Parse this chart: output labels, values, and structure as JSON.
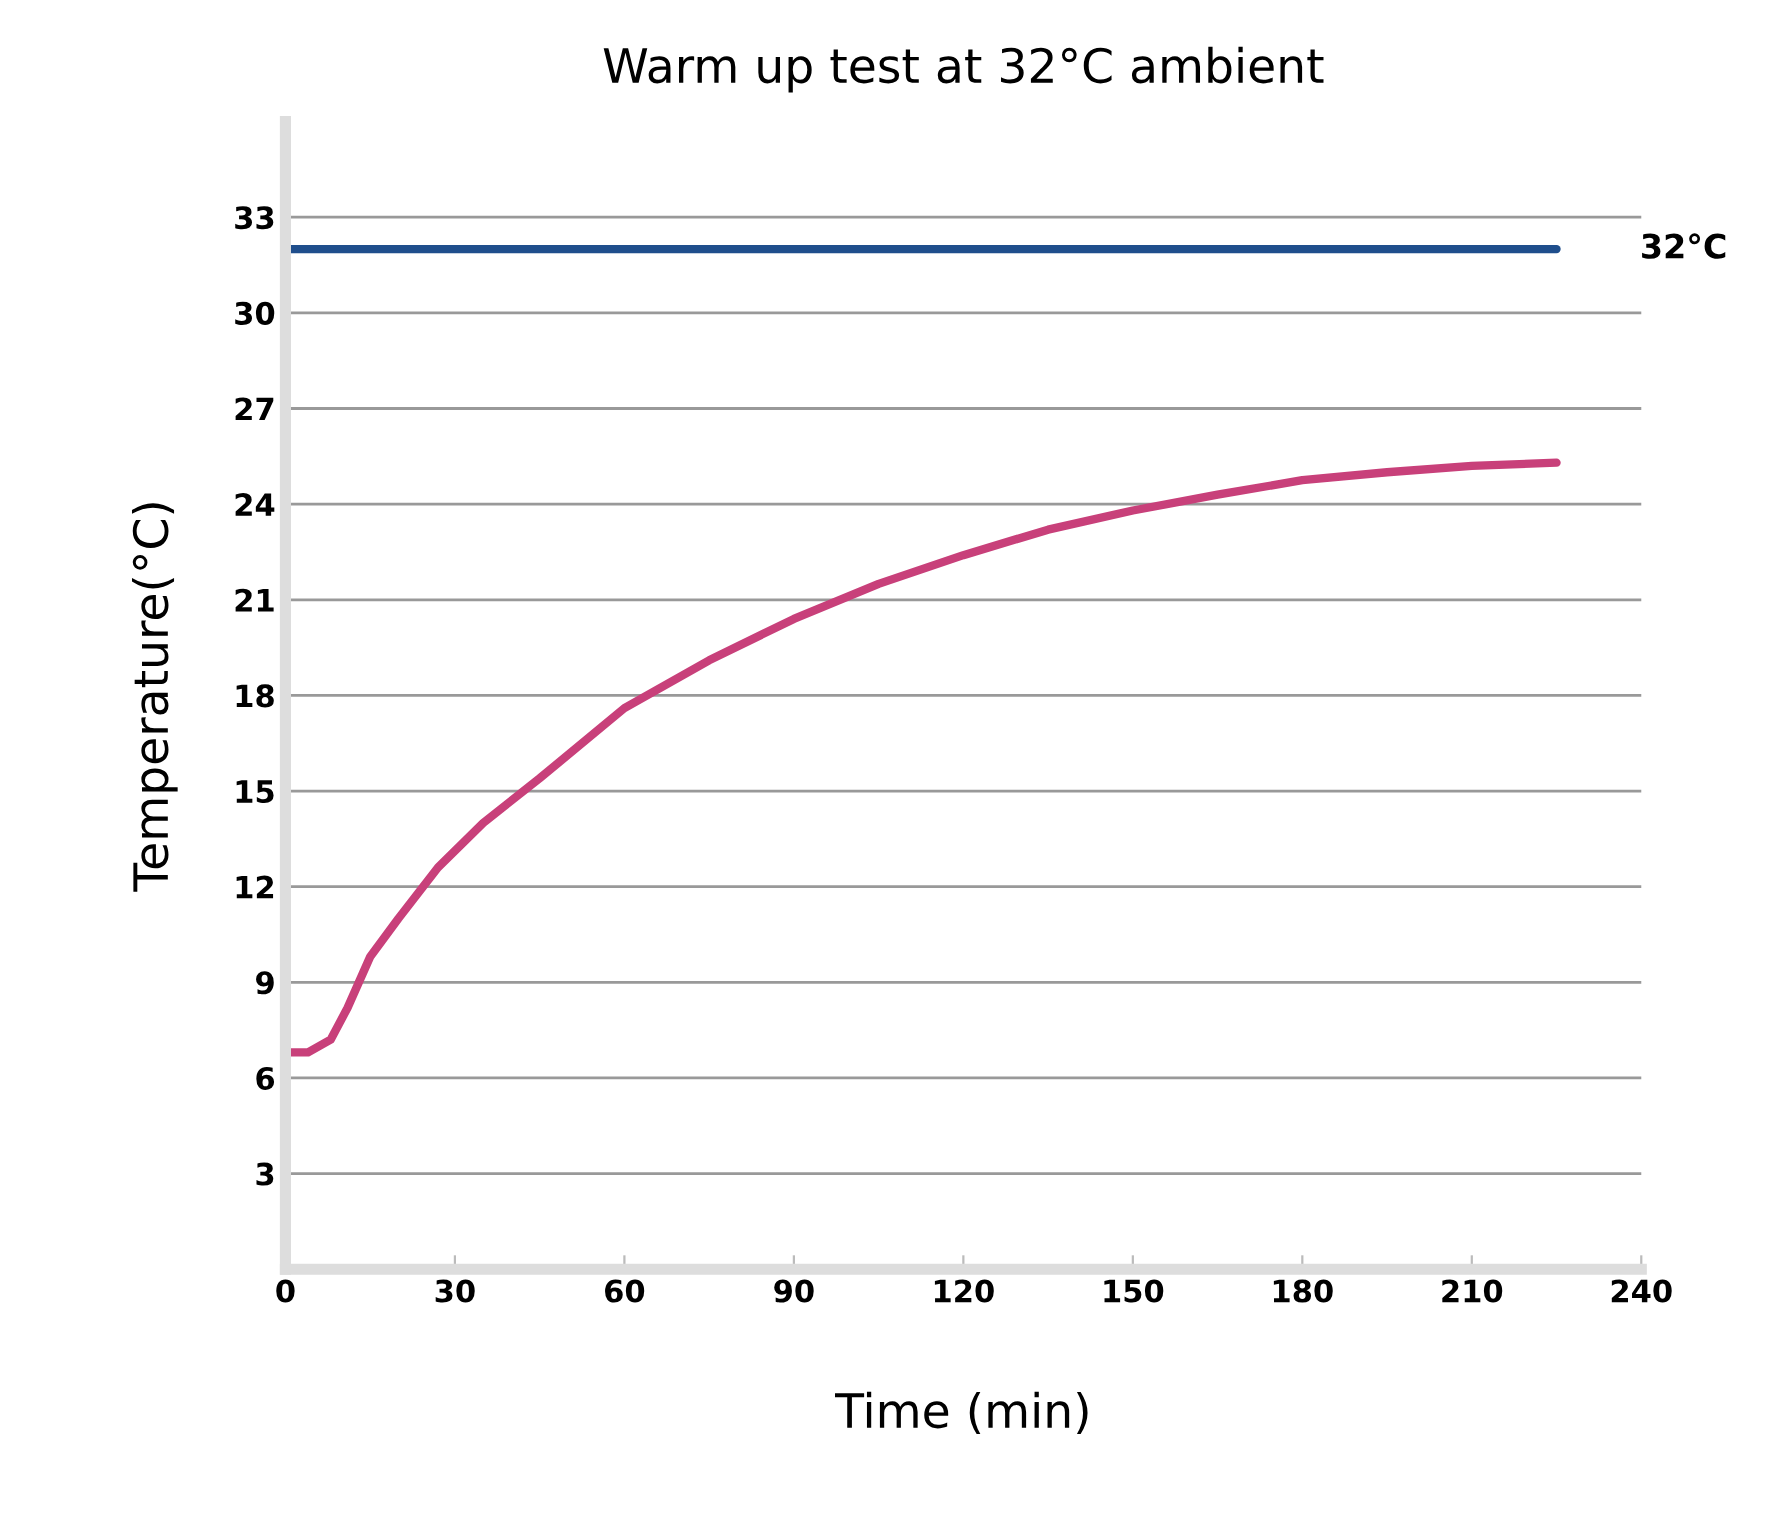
{
  "chart_data": {
    "type": "line",
    "title": "Warm up test at 32°C ambient",
    "xlabel": "Time (min)",
    "ylabel": "Temperature(°C)",
    "series": [
      {
        "name": "32°C",
        "color": "#1f4e8c",
        "x": [
          0,
          225
        ],
        "values": [
          32,
          32
        ]
      },
      {
        "color": "#c8407a",
        "x": [
          0,
          4,
          8,
          11,
          15,
          20,
          27,
          35,
          45,
          60,
          75,
          90,
          105,
          120,
          135,
          150,
          165,
          180,
          195,
          210,
          225
        ],
        "values": [
          6.8,
          6.8,
          7.2,
          8.2,
          9.8,
          11.0,
          12.6,
          14.0,
          15.4,
          17.6,
          19.1,
          20.4,
          21.5,
          22.4,
          23.2,
          23.8,
          24.3,
          24.75,
          25.0,
          25.2,
          25.3
        ]
      }
    ],
    "xlim": [
      0,
      240
    ],
    "xticks": [
      0,
      30,
      60,
      90,
      120,
      150,
      180,
      210,
      240
    ],
    "ylim": [
      0,
      36
    ],
    "yticks": [
      3,
      6,
      9,
      12,
      15,
      18,
      21,
      24,
      27,
      30,
      33
    ],
    "grid": "y",
    "legend": false,
    "marker": "none",
    "line_style": "solid"
  }
}
